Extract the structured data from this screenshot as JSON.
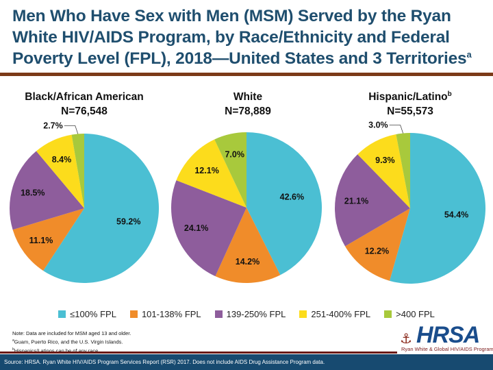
{
  "slide": {
    "title": "Men Who Have Sex with Men (MSM) Served by the Ryan White HIV/AIDS Program, by Race/Ethnicity and Federal Poverty Level (FPL), 2018—United States and 3 Territories",
    "title_superscript": "a",
    "notes": [
      {
        "sup": "",
        "text": "Note: Data are included for MSM aged 13 and older."
      },
      {
        "sup": "a",
        "text": "Guam, Puerto Rico, and the U.S. Virgin Islands."
      },
      {
        "sup": "b",
        "text": "Hispanics/Latinos can be of any race."
      }
    ],
    "source": "Source: HRSA. Ryan White HIV/AIDS Program Services Report (RSR) 2017. Does not include AIDS Drug Assistance Program data.",
    "logo": {
      "name": "HRSA",
      "subtitle": "Ryan White & Global HIV/AIDS Programs"
    }
  },
  "chart_data": [
    {
      "type": "pie",
      "title": "Black/African American",
      "title_superscript": "",
      "subtitle": "N=76,548",
      "categories": [
        "≤100% FPL",
        "101-138% FPL",
        "139-250% FPL",
        "251-400% FPL",
        ">400 FPL"
      ],
      "values": [
        59.2,
        11.1,
        18.5,
        8.4,
        2.7
      ],
      "labels": [
        "59.2%",
        "11.1%",
        "18.5%",
        "8.4%",
        "2.7%"
      ]
    },
    {
      "type": "pie",
      "title": "White",
      "title_superscript": "",
      "subtitle": "N=78,889",
      "categories": [
        "≤100% FPL",
        "101-138% FPL",
        "139-250% FPL",
        "251-400% FPL",
        ">400 FPL"
      ],
      "values": [
        42.6,
        14.2,
        24.1,
        12.1,
        7.0
      ],
      "labels": [
        "42.6%",
        "14.2%",
        "24.1%",
        "12.1%",
        "7.0%"
      ]
    },
    {
      "type": "pie",
      "title": "Hispanic/Latino",
      "title_superscript": "b",
      "subtitle": "N=55,573",
      "categories": [
        "≤100% FPL",
        "101-138% FPL",
        "139-250% FPL",
        "251-400% FPL",
        ">400 FPL"
      ],
      "values": [
        54.4,
        12.2,
        21.1,
        9.3,
        3.0
      ],
      "labels": [
        "54.4%",
        "12.2%",
        "21.1%",
        "9.3%",
        "3.0%"
      ]
    }
  ],
  "legend": [
    {
      "label": "≤100% FPL",
      "color": "#4bbfd3"
    },
    {
      "label": "101-138% FPL",
      "color": "#f08c2a"
    },
    {
      "label": "139-250% FPL",
      "color": "#8e5d9c"
    },
    {
      "label": "251-400% FPL",
      "color": "#fcdc1c"
    },
    {
      "label": ">400 FPL",
      "color": "#a8c93c"
    }
  ]
}
